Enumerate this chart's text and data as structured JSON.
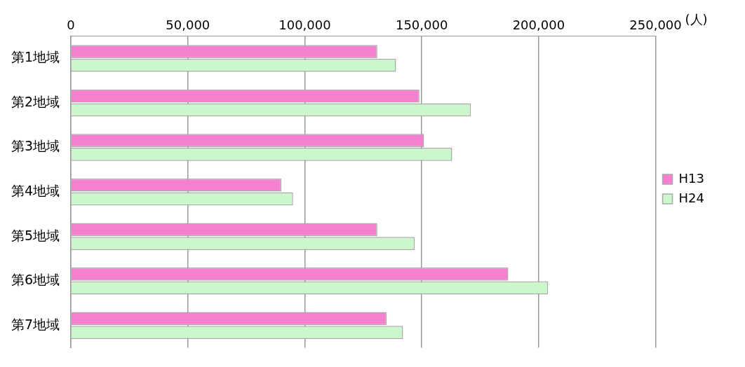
{
  "chart_data": {
    "type": "bar",
    "orientation": "horizontal",
    "categories": [
      "第1地域",
      "第2地域",
      "第3地域",
      "第4地域",
      "第5地域",
      "第6地域",
      "第7地域"
    ],
    "series": [
      {
        "name": "H13",
        "color": "#f77fd0",
        "values": [
          131000,
          149000,
          151000,
          90000,
          131000,
          187000,
          135000
        ]
      },
      {
        "name": "H24",
        "color": "#ccf7cc",
        "values": [
          139000,
          171000,
          163000,
          95000,
          147000,
          204000,
          142000
        ]
      }
    ],
    "xlim": [
      0,
      250000
    ],
    "xticks": [
      {
        "value": 0,
        "label": "0"
      },
      {
        "value": 50000,
        "label": "50,000"
      },
      {
        "value": 100000,
        "label": "100,000"
      },
      {
        "value": 150000,
        "label": "150,000"
      },
      {
        "value": 200000,
        "label": "200,000"
      },
      {
        "value": 250000,
        "label": "250,000"
      }
    ],
    "annotations": [
      "(人)"
    ],
    "grid": "x",
    "legend": "right"
  }
}
